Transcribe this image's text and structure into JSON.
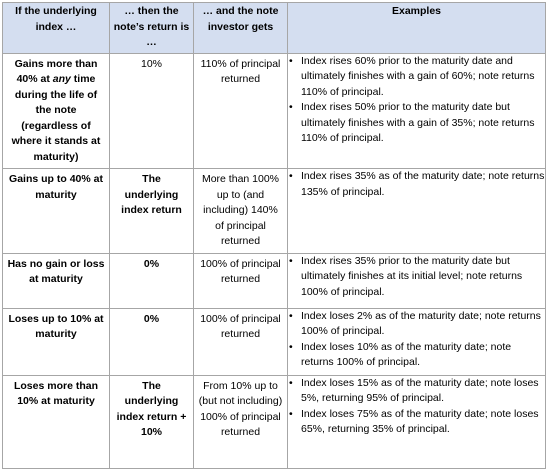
{
  "table": {
    "headers": [
      "If the underlying index …",
      "… then the note’s return is …",
      "… and the note investor gets",
      "Examples"
    ],
    "rows": [
      {
        "condition_parts": [
          "Gains more than 40% at ",
          "any",
          " time during the life of the note (regardless of where it stands at maturity)"
        ],
        "return": "10%",
        "gets": "110% of principal returned",
        "examples": [
          "Index rises 60% prior to the maturity date and ultimately finishes with a gain of 60%; note returns 110% of principal.",
          "Index rises 50% prior to the maturity date but ultimately finishes with a gain of 35%; note returns 110% of principal."
        ]
      },
      {
        "condition": "Gains up to 40% at maturity",
        "return": "The underlying index return",
        "gets": "More than 100% up to (and including) 140% of principal returned",
        "examples": [
          "Index rises 35% as of the maturity date; note returns 135% of principal."
        ]
      },
      {
        "condition": "Has no gain or loss at maturity",
        "return": "0%",
        "gets": "100% of principal returned",
        "examples": [
          "Index rises 35% prior to the maturity date but ultimately finishes at its initial level; note returns 100% of principal."
        ]
      },
      {
        "condition": "Loses up to 10% at maturity",
        "return": "0%",
        "gets": "100% of principal returned",
        "examples": [
          "Index loses 2% as of the maturity date; note returns 100% of principal.",
          "Index loses 10% as of the maturity date; note returns 100% of principal."
        ]
      },
      {
        "condition": "Loses more than 10% at maturity",
        "return": "The underlying index return + 10%",
        "gets": "From 10% up to (but not including) 100% of principal returned",
        "examples": [
          "Index loses 15% as of the maturity date; note loses 5%, returning 95% of principal.",
          "Index loses 75% as of the maturity date; note loses 65%, returning 35% of principal."
        ]
      }
    ]
  },
  "colors": {
    "header_bg": "#d4def0",
    "border": "#a6a6a6"
  }
}
